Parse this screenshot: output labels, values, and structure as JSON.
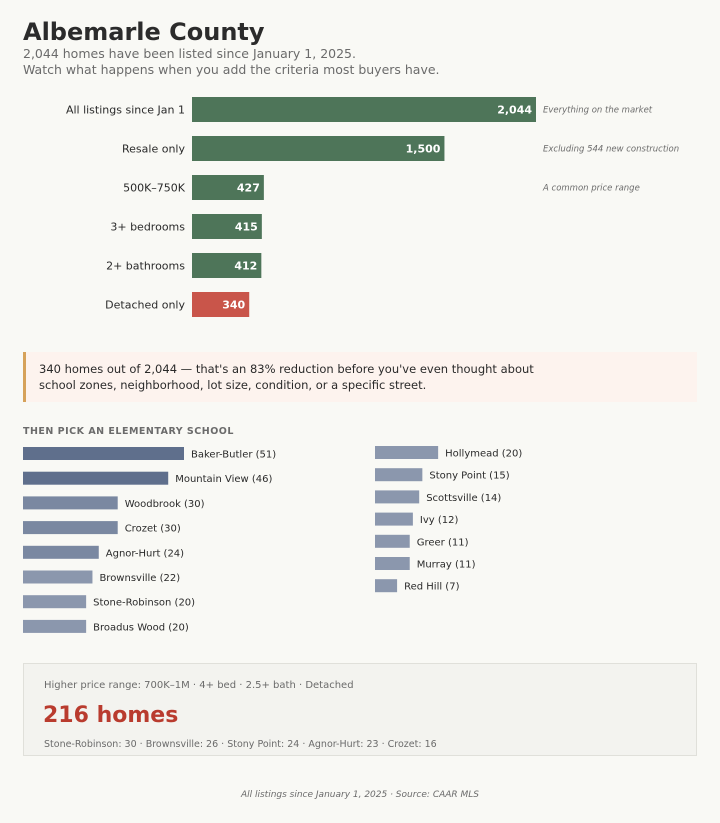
{
  "header": {
    "title": "Albemarle County",
    "subtitle_line1": "2,044 homes have been listed since January 1, 2025.",
    "subtitle_line2": "Watch what happens when you add the criteria most buyers have."
  },
  "colors": {
    "funnel_bar": "#4e7559",
    "funnel_final_bar": "#c9554a",
    "school_bar_top": "#5f6f8c",
    "school_bar_mid": "#7a88a1",
    "school_bar_low": "#8b97ad",
    "highlight_red": "#b93b2e",
    "callout_border": "#d6a25a"
  },
  "chart_data": [
    {
      "type": "bar",
      "orientation": "horizontal",
      "categories": [
        "All listings since Jan 1",
        "Resale only",
        "500K–750K",
        "3+ bedrooms",
        "2+ bathrooms",
        "Detached only"
      ],
      "values": [
        2044,
        1500,
        427,
        415,
        412,
        340
      ],
      "value_labels": [
        "2,044",
        "1,500",
        "427",
        "415",
        "412",
        "340"
      ],
      "annotations": [
        "Everything on the market",
        "Excluding 544 new construction",
        "A common price range",
        "",
        "",
        ""
      ],
      "xlim": [
        0,
        2044
      ]
    },
    {
      "type": "bar",
      "orientation": "horizontal",
      "title": "THEN PICK AN ELEMENTARY SCHOOL",
      "categories": [
        "Baker-Butler",
        "Mountain View",
        "Woodbrook",
        "Crozet",
        "Agnor-Hurt",
        "Brownsville",
        "Stone-Robinson",
        "Broadus Wood",
        "Hollymead",
        "Stony Point",
        "Scottsville",
        "Ivy",
        "Greer",
        "Murray",
        "Red Hill"
      ],
      "values": [
        51,
        46,
        30,
        30,
        24,
        22,
        20,
        20,
        20,
        15,
        14,
        12,
        11,
        11,
        7
      ],
      "xlim": [
        0,
        51
      ]
    }
  ],
  "callout": {
    "text": "340 homes out of 2,044 — that's an 83% reduction before you've even thought about school zones, neighborhood, lot size, condition, or a specific street."
  },
  "summary": {
    "criteria": "Higher price range:  700K–1M · 4+ bed · 2.5+ bath · Detached",
    "count": "216 homes",
    "breakdown": "Stone-Robinson: 30 · Brownsville: 26 · Stony Point: 24 · Agnor-Hurt: 23 · Crozet: 16"
  },
  "footer": {
    "source": "All listings since January 1, 2025 · Source: CAAR MLS"
  }
}
